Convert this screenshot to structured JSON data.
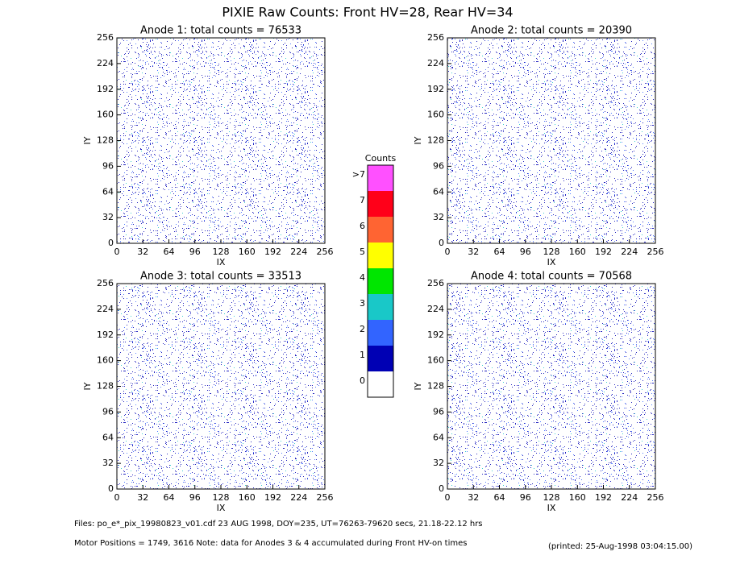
{
  "title": "PIXIE Raw Counts:  Front HV=28, Rear HV=34",
  "chart_data": [
    {
      "type": "heatmap",
      "title": "Anode 1: total counts = 76533",
      "xlabel": "IX",
      "ylabel": "IY",
      "xlim": [
        0,
        256
      ],
      "ylim": [
        0,
        256
      ],
      "xticks": [
        0,
        32,
        64,
        96,
        128,
        160,
        192,
        224,
        256
      ],
      "yticks": [
        0,
        32,
        64,
        96,
        128,
        160,
        192,
        224,
        256
      ]
    },
    {
      "type": "heatmap",
      "title": "Anode 2: total counts = 20390",
      "xlabel": "IX",
      "ylabel": "IY",
      "xlim": [
        0,
        256
      ],
      "ylim": [
        0,
        256
      ],
      "xticks": [
        0,
        32,
        64,
        96,
        128,
        160,
        192,
        224,
        256
      ],
      "yticks": [
        0,
        32,
        64,
        96,
        128,
        160,
        192,
        224,
        256
      ]
    },
    {
      "type": "heatmap",
      "title": "Anode 3: total counts = 33513",
      "xlabel": "IX",
      "ylabel": "IY",
      "xlim": [
        0,
        256
      ],
      "ylim": [
        0,
        256
      ],
      "xticks": [
        0,
        32,
        64,
        96,
        128,
        160,
        192,
        224,
        256
      ],
      "yticks": [
        0,
        32,
        64,
        96,
        128,
        160,
        192,
        224,
        256
      ]
    },
    {
      "type": "heatmap",
      "title": "Anode 4: total counts = 70568",
      "xlabel": "IX",
      "ylabel": "IY",
      "xlim": [
        0,
        256
      ],
      "ylim": [
        0,
        256
      ],
      "xticks": [
        0,
        32,
        64,
        96,
        128,
        160,
        192,
        224,
        256
      ],
      "yticks": [
        0,
        32,
        64,
        96,
        128,
        160,
        192,
        224,
        256
      ]
    }
  ],
  "colorbar": {
    "title": "Counts",
    "labels": [
      "0",
      "1",
      "2",
      "3",
      "4",
      "5",
      "6",
      "7",
      ">7"
    ],
    "colors": [
      "#ffffff",
      "#0000b4",
      "#3264ff",
      "#19c8c8",
      "#00e600",
      "#ffff00",
      "#ff6432",
      "#ff0019",
      "#ff50ff"
    ]
  },
  "footer": {
    "files": "Files: po_e*_pix_19980823_v01.cdf    23 AUG 1998, DOY=235, UT=76263-79620 secs, 21.18-22.12 hrs",
    "motor": "Motor Positions = 1749, 3616    Note: data for Anodes 3 & 4 accumulated during Front HV-on times",
    "printed": "(printed: 25-Aug-1998 03:04:15.00)"
  }
}
